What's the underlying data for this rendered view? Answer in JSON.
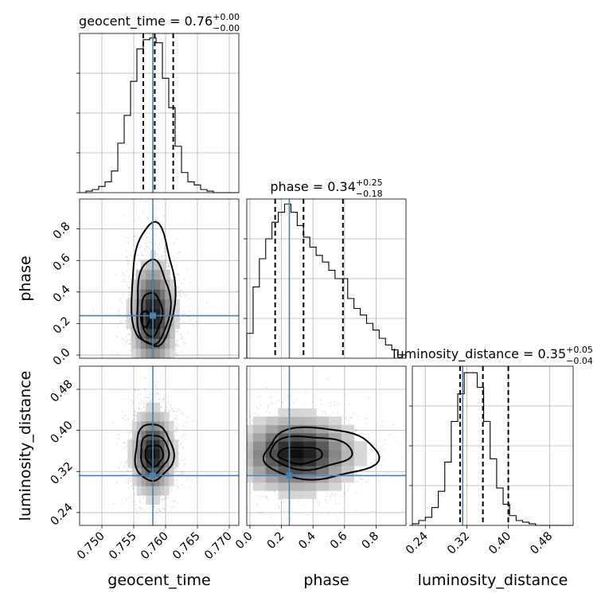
{
  "chart_data": {
    "type": "corner",
    "parameters": [
      {
        "key": "geocent_time",
        "axis_label": "geocent_time",
        "title_text": "geocent_time = 0.76",
        "title_sup": "+0.00",
        "title_sub": "−0.00",
        "range": [
          0.7465,
          0.7715
        ],
        "ticks": [
          0.75,
          0.755,
          0.76,
          0.765,
          0.77
        ],
        "tick_labels": [
          "0.750",
          "0.755",
          "0.760",
          "0.765",
          "0.770"
        ],
        "quantiles": [
          0.7565,
          0.7583,
          0.7612
        ],
        "truth": 0.758,
        "hist_edges": [
          0.7465,
          0.7475,
          0.7485,
          0.7495,
          0.7505,
          0.7515,
          0.7525,
          0.7535,
          0.7545,
          0.7555,
          0.7565,
          0.7575,
          0.7585,
          0.7595,
          0.7605,
          0.7615,
          0.7625,
          0.7635,
          0.7645,
          0.7655,
          0.7665,
          0.7675,
          0.7685,
          0.7695,
          0.7705,
          0.7715
        ],
        "hist_values": [
          0,
          0.01,
          0.02,
          0.04,
          0.07,
          0.14,
          0.32,
          0.5,
          0.72,
          0.93,
          0.99,
          1.0,
          0.97,
          0.74,
          0.55,
          0.3,
          0.13,
          0.07,
          0.05,
          0.02,
          0.01,
          0,
          0,
          0,
          0
        ],
        "hist_ymax": 1.03
      },
      {
        "key": "phase",
        "axis_label": "phase",
        "title_text": "phase = 0.34",
        "title_sup": "+0.25",
        "title_sub": "−0.18",
        "range": [
          -0.02,
          0.99
        ],
        "ticks": [
          0.0,
          0.2,
          0.4,
          0.6,
          0.8
        ],
        "tick_labels": [
          "0.0",
          "0.2",
          "0.4",
          "0.6",
          "0.8"
        ],
        "quantiles": [
          0.16,
          0.34,
          0.59
        ],
        "truth": 0.25,
        "hist_edges": [
          -0.02,
          0.02,
          0.06,
          0.1,
          0.14,
          0.18,
          0.22,
          0.26,
          0.3,
          0.34,
          0.38,
          0.42,
          0.46,
          0.5,
          0.54,
          0.58,
          0.62,
          0.66,
          0.7,
          0.74,
          0.78,
          0.82,
          0.86,
          0.9,
          0.94,
          0.99
        ],
        "hist_values": [
          0.15,
          0.43,
          0.6,
          0.72,
          0.82,
          0.88,
          0.93,
          0.88,
          0.8,
          0.73,
          0.67,
          0.62,
          0.58,
          0.53,
          0.48,
          0.48,
          0.36,
          0.3,
          0.26,
          0.21,
          0.17,
          0.12,
          0.08,
          0.05,
          0.02
        ],
        "hist_ymax": 0.96
      },
      {
        "key": "luminosity_distance",
        "axis_label": "luminosity_distance",
        "title_text": "luminosity_distance = 0.35",
        "title_sup": "+0.05",
        "title_sub": "−0.04",
        "range": [
          0.215,
          0.525
        ],
        "ticks": [
          0.24,
          0.32,
          0.4,
          0.48
        ],
        "tick_labels": [
          "0.24",
          "0.32",
          "0.40",
          "0.48"
        ],
        "quantiles": [
          0.307,
          0.351,
          0.4
        ],
        "truth": 0.312,
        "hist_edges": [
          0.215,
          0.2275,
          0.24,
          0.2525,
          0.265,
          0.2775,
          0.29,
          0.3025,
          0.315,
          0.3275,
          0.34,
          0.3525,
          0.365,
          0.3775,
          0.39,
          0.4025,
          0.415,
          0.4275,
          0.44,
          0.4525,
          0.465,
          0.4775,
          0.49,
          0.5025,
          0.515,
          0.525
        ],
        "hist_values": [
          0.01,
          0.03,
          0.05,
          0.11,
          0.21,
          0.39,
          0.64,
          0.81,
          0.94,
          0.94,
          0.85,
          0.64,
          0.41,
          0.23,
          0.13,
          0.06,
          0.03,
          0.02,
          0.01,
          0,
          0,
          0,
          0,
          0,
          0
        ],
        "hist_ymax": 0.98
      }
    ],
    "pairs": [
      {
        "x": "geocent_time",
        "y": "phase",
        "center": [
          0.758,
          0.25
        ],
        "spread": [
          0.0019,
          0.19
        ],
        "contours": [
          [
            0.7568,
            0.23,
            0.0007,
            0.05
          ],
          [
            0.7578,
            0.26,
            0.0016,
            0.14
          ],
          [
            0.758,
            0.33,
            0.0026,
            0.27
          ],
          [
            0.758,
            0.43,
            0.0034,
            0.39
          ]
        ]
      },
      {
        "x": "geocent_time",
        "y": "luminosity_distance",
        "center": [
          0.758,
          0.355
        ],
        "spread": [
          0.0018,
          0.045
        ],
        "contours": [
          [
            0.7582,
            0.352,
            0.0014,
            0.02
          ],
          [
            0.7582,
            0.355,
            0.0022,
            0.037
          ],
          [
            0.7581,
            0.357,
            0.003,
            0.055
          ]
        ]
      },
      {
        "x": "phase",
        "y": "luminosity_distance",
        "center": [
          0.3,
          0.355
        ],
        "spread": [
          0.2,
          0.04
        ],
        "contours": [
          [
            0.32,
            0.352,
            0.14,
            0.016
          ],
          [
            0.38,
            0.357,
            0.26,
            0.032
          ],
          [
            0.44,
            0.355,
            0.36,
            0.05
          ]
        ]
      }
    ],
    "grid": true,
    "truth_color": "#4682b4",
    "line_color": "#000000"
  }
}
